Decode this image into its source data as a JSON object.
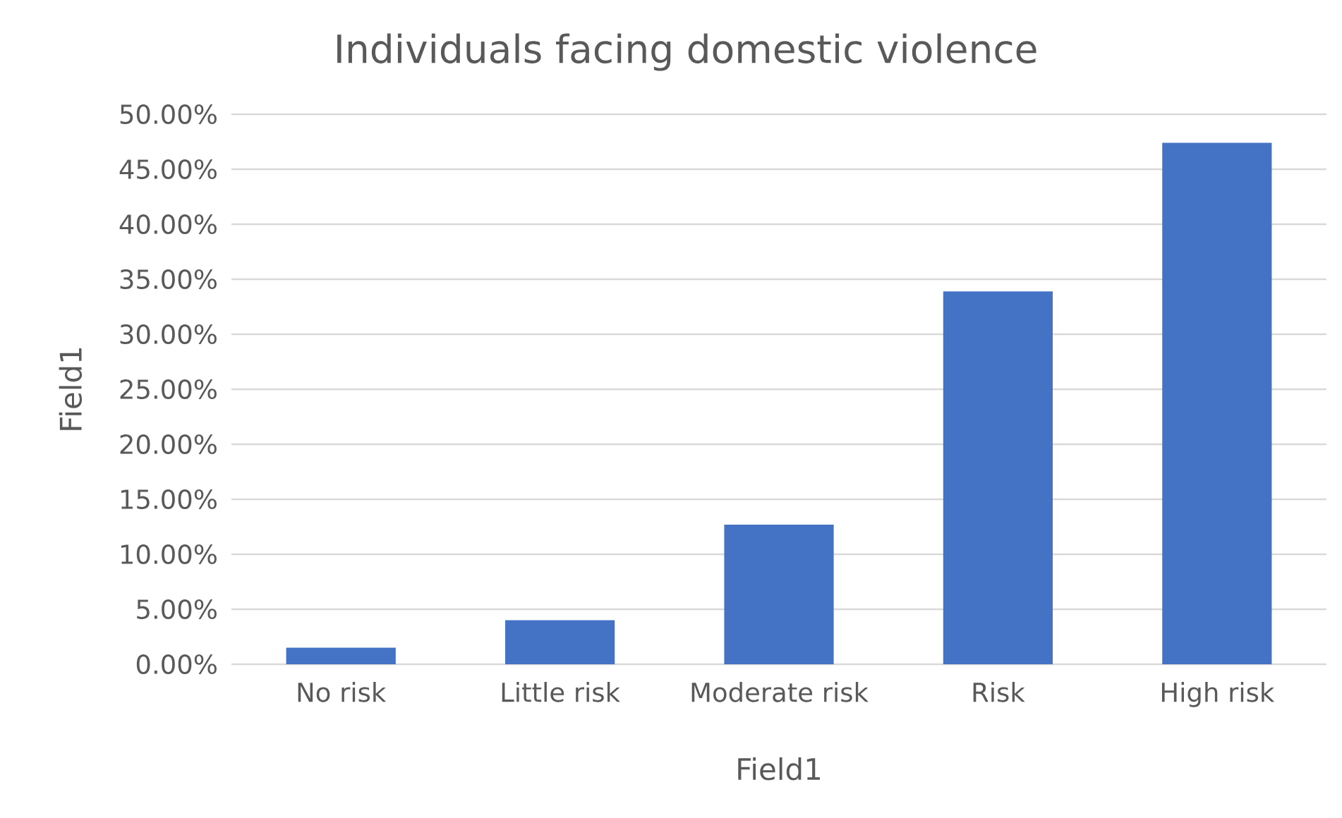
{
  "chart_data": {
    "type": "bar",
    "title": "Individuals facing domestic violence",
    "xlabel": "Field1",
    "ylabel": "Field1",
    "categories": [
      "No risk",
      "Little risk",
      "Moderate risk",
      "Risk",
      "High risk"
    ],
    "values": [
      1.5,
      4.0,
      12.7,
      33.9,
      47.4
    ],
    "color": "#4472c4",
    "ylim": [
      0,
      50
    ],
    "yticks": [
      {
        "value": 0,
        "label": "0.00%"
      },
      {
        "value": 5,
        "label": "5.00%"
      },
      {
        "value": 10,
        "label": "10.00%"
      },
      {
        "value": 15,
        "label": "15.00%"
      },
      {
        "value": 20,
        "label": "20.00%"
      },
      {
        "value": 25,
        "label": "25.00%"
      },
      {
        "value": 30,
        "label": "30.00%"
      },
      {
        "value": 35,
        "label": "35.00%"
      },
      {
        "value": 40,
        "label": "40.00%"
      },
      {
        "value": 45,
        "label": "45.00%"
      },
      {
        "value": 50,
        "label": "50.00%"
      }
    ],
    "grid": "y"
  }
}
